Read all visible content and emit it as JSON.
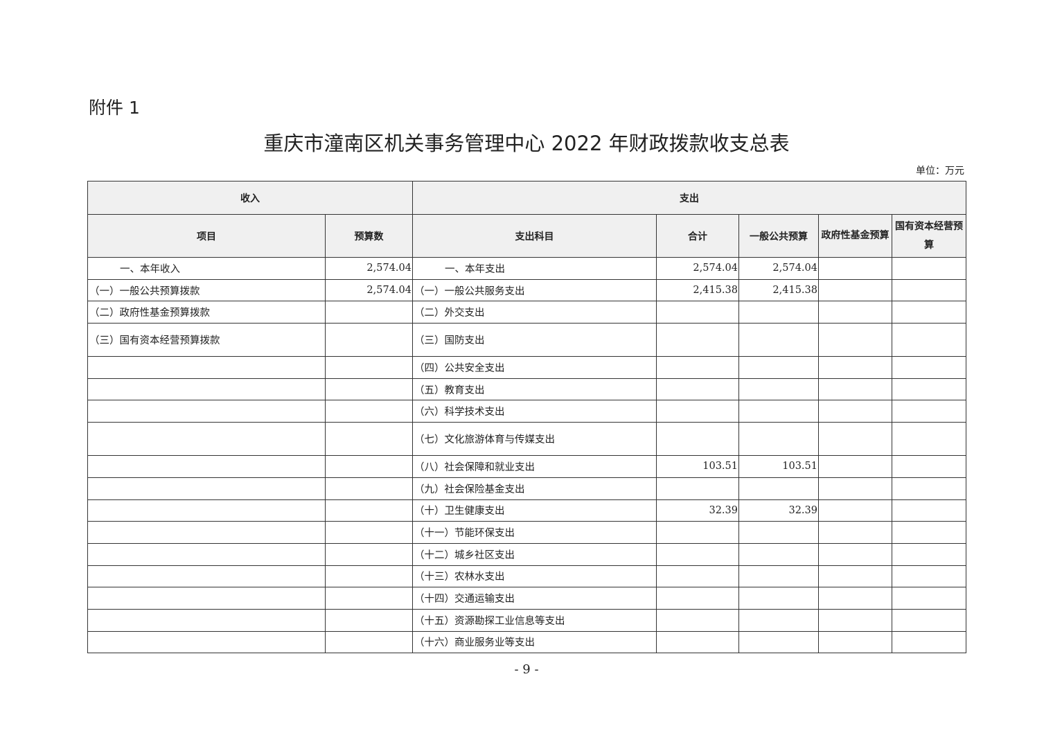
{
  "attachment_label": "附件 1",
  "title": "重庆市潼南区机关事务管理中心 2022 年财政拨款收支总表",
  "unit": "单位：万元",
  "header": {
    "income": "收入",
    "expense": "支出",
    "columns": [
      "项目",
      "预算数",
      "支出科目",
      "合计",
      "一般公共预算",
      "政府性基金预算",
      "国有资本经营预算"
    ]
  },
  "rows": [
    {
      "item": "一、本年收入",
      "budget": "2,574.04",
      "subject": "一、本年支出",
      "total": "2,574.04",
      "general": "2,574.04",
      "fund": "",
      "state": "",
      "indent": true,
      "tall": false
    },
    {
      "item": "（一）一般公共预算拨款",
      "budget": "2,574.04",
      "subject": "（一）一般公共服务支出",
      "total": "2,415.38",
      "general": "2,415.38",
      "fund": "",
      "state": "",
      "tall": false
    },
    {
      "item": "（二）政府性基金预算拨款",
      "budget": "",
      "subject": "（二）外交支出",
      "total": "",
      "general": "",
      "fund": "",
      "state": "",
      "tall": false
    },
    {
      "item": "（三）国有资本经营预算拨款",
      "budget": "",
      "subject": "（三）国防支出",
      "total": "",
      "general": "",
      "fund": "",
      "state": "",
      "tall": true
    },
    {
      "item": "",
      "budget": "",
      "subject": "（四）公共安全支出",
      "total": "",
      "general": "",
      "fund": "",
      "state": "",
      "tall": false
    },
    {
      "item": "",
      "budget": "",
      "subject": "（五）教育支出",
      "total": "",
      "general": "",
      "fund": "",
      "state": "",
      "tall": false
    },
    {
      "item": "",
      "budget": "",
      "subject": "（六）科学技术支出",
      "total": "",
      "general": "",
      "fund": "",
      "state": "",
      "tall": false
    },
    {
      "item": "",
      "budget": "",
      "subject": "（七）文化旅游体育与传媒支出",
      "total": "",
      "general": "",
      "fund": "",
      "state": "",
      "tall": true
    },
    {
      "item": "",
      "budget": "",
      "subject": "（八）社会保障和就业支出",
      "total": "103.51",
      "general": "103.51",
      "fund": "",
      "state": "",
      "tall": false
    },
    {
      "item": "",
      "budget": "",
      "subject": "（九）社会保险基金支出",
      "total": "",
      "general": "",
      "fund": "",
      "state": "",
      "tall": false
    },
    {
      "item": "",
      "budget": "",
      "subject": "（十）卫生健康支出",
      "total": "32.39",
      "general": "32.39",
      "fund": "",
      "state": "",
      "tall": false
    },
    {
      "item": "",
      "budget": "",
      "subject": "（十一）节能环保支出",
      "total": "",
      "general": "",
      "fund": "",
      "state": "",
      "tall": false
    },
    {
      "item": "",
      "budget": "",
      "subject": "（十二）城乡社区支出",
      "total": "",
      "general": "",
      "fund": "",
      "state": "",
      "tall": false
    },
    {
      "item": "",
      "budget": "",
      "subject": "（十三）农林水支出",
      "total": "",
      "general": "",
      "fund": "",
      "state": "",
      "tall": false
    },
    {
      "item": "",
      "budget": "",
      "subject": "（十四）交通运输支出",
      "total": "",
      "general": "",
      "fund": "",
      "state": "",
      "tall": false
    },
    {
      "item": "",
      "budget": "",
      "subject": "（十五）资源勘探工业信息等支出",
      "total": "",
      "general": "",
      "fund": "",
      "state": "",
      "tall": false
    },
    {
      "item": "",
      "budget": "",
      "subject": "（十六）商业服务业等支出",
      "total": "",
      "general": "",
      "fund": "",
      "state": "",
      "tall": false
    }
  ],
  "page_number": "- 9 -"
}
